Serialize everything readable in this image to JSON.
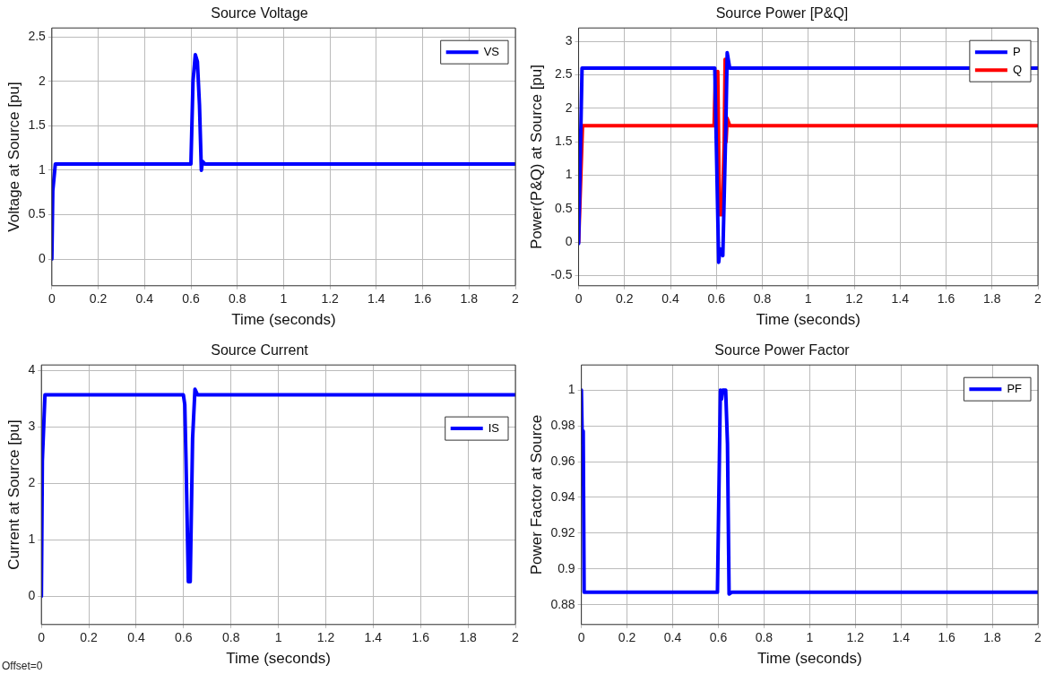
{
  "chart_data": [
    {
      "type": "line",
      "title": "Source Voltage",
      "xlabel": "Time (seconds)",
      "ylabel": "Voltage at Source [pu]",
      "xlim": [
        0,
        2
      ],
      "xticks": [
        0,
        0.2,
        0.4,
        0.6,
        0.8,
        1,
        1.2,
        1.4,
        1.6,
        1.8,
        2
      ],
      "ylim": [
        -0.3,
        2.6
      ],
      "yticks": [
        0,
        0.5,
        1,
        1.5,
        2,
        2.5
      ],
      "grid": true,
      "legend": "top right",
      "series": [
        {
          "name": "VS",
          "color": "#0000ff",
          "x": [
            0,
            0.004,
            0.015,
            0.6,
            0.609,
            0.619,
            0.628,
            0.637,
            0.645,
            0.65,
            0.66,
            2
          ],
          "values": [
            0,
            0.77,
            1.07,
            1.07,
            2.0,
            2.3,
            2.22,
            1.73,
            1.0,
            1.1,
            1.07,
            1.07
          ]
        }
      ]
    },
    {
      "type": "line",
      "title": "Source Power [P&Q]",
      "xlabel": "Time (seconds)",
      "ylabel": "Power(P&Q) at Source [pu]",
      "xlim": [
        0,
        2
      ],
      "xticks": [
        0,
        0.2,
        0.4,
        0.6,
        0.8,
        1,
        1.2,
        1.4,
        1.6,
        1.8,
        2
      ],
      "ylim": [
        -0.65,
        3.2
      ],
      "yticks": [
        -0.5,
        0,
        0.5,
        1,
        1.5,
        2,
        2.5,
        3
      ],
      "grid": true,
      "legend": "top right",
      "series": [
        {
          "name": "P",
          "color": "#0000ff",
          "x": [
            0,
            0.015,
            0.593,
            0.61,
            0.616,
            0.628,
            0.641,
            0.647,
            0.658,
            2
          ],
          "values": [
            -0.02,
            2.6,
            2.6,
            -0.3,
            -0.1,
            -0.2,
            1.7,
            2.83,
            2.6,
            2.6
          ]
        },
        {
          "name": "Q",
          "color": "#ff0000",
          "x": [
            0,
            0.017,
            0.59,
            0.596,
            0.601,
            0.606,
            0.613,
            0.625,
            0.634,
            0.638,
            0.642,
            0.647,
            0.658,
            2
          ],
          "values": [
            0,
            1.74,
            1.74,
            2.55,
            1.6,
            2.55,
            0.41,
            0.41,
            1.5,
            2.73,
            1.5,
            1.85,
            1.74,
            1.74
          ]
        }
      ]
    },
    {
      "type": "line",
      "title": "Source Current",
      "xlabel": "Time (seconds)",
      "ylabel": "Current at Source [pu]",
      "xlim": [
        0,
        2
      ],
      "xticks": [
        0,
        0.2,
        0.4,
        0.6,
        0.8,
        1,
        1.2,
        1.4,
        1.6,
        1.8,
        2
      ],
      "ylim": [
        -0.5,
        4.1
      ],
      "yticks": [
        0,
        1,
        2,
        3,
        4
      ],
      "grid": true,
      "legend": "right",
      "annotations": [
        "Offset=0"
      ],
      "series": [
        {
          "name": "IS",
          "color": "#0000ff",
          "x": [
            0,
            0.004,
            0.015,
            0.599,
            0.605,
            0.61,
            0.62,
            0.628,
            0.638,
            0.648,
            0.659,
            2
          ],
          "values": [
            0,
            2.4,
            3.57,
            3.57,
            3.4,
            2.45,
            0.26,
            0.26,
            2.8,
            3.67,
            3.57,
            3.57
          ]
        }
      ]
    },
    {
      "type": "line",
      "title": "Source Power Factor",
      "xlabel": "Time (seconds)",
      "ylabel": "Power Factor at Source",
      "xlim": [
        0,
        2
      ],
      "xticks": [
        0,
        0.2,
        0.4,
        0.6,
        0.8,
        1,
        1.2,
        1.4,
        1.6,
        1.8,
        2
      ],
      "ylim": [
        0.869,
        1.014
      ],
      "yticks": [
        0.88,
        0.9,
        0.92,
        0.94,
        0.96,
        0.98,
        1
      ],
      "grid": true,
      "legend": "top right",
      "series": [
        {
          "name": "PF",
          "color": "#0000ff",
          "x": [
            0,
            0.004,
            0.008,
            0.012,
            0.596,
            0.609,
            0.614,
            0.619,
            0.632,
            0.64,
            0.647,
            0.658,
            2
          ],
          "values": [
            1,
            0.97,
            0.977,
            0.887,
            0.887,
            1,
            0.995,
            1,
            1,
            0.97,
            0.886,
            0.887,
            0.887
          ]
        }
      ]
    }
  ]
}
